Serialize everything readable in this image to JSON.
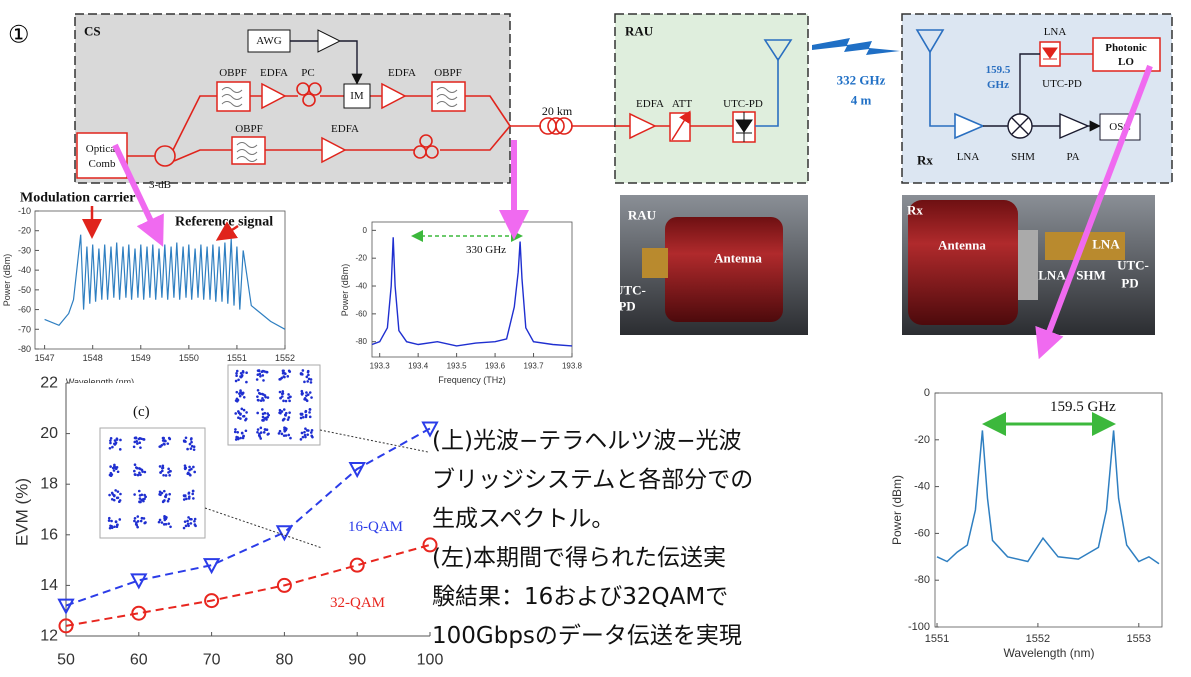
{
  "marker": "①",
  "diagram": {
    "cs": {
      "title": "CS",
      "awg": "AWG",
      "obpf1": "OBPF",
      "edfa1": "EDFA",
      "pc": "PC",
      "im": "IM",
      "edfa2": "EDFA",
      "obpf2": "OBPF",
      "comb": [
        "Optical",
        "Comb"
      ],
      "coupler": "3-dB",
      "obpf3": "OBPF",
      "edfa3": "EDFA"
    },
    "fiber": "20 km",
    "rau": {
      "title": "RAU",
      "edfa": "EDFA",
      "att": "ATT",
      "pd": "UTC-PD"
    },
    "link": [
      "332 GHz",
      "4 m"
    ],
    "rx": {
      "title": "Rx",
      "lna1": "LNA",
      "lo_freq": [
        "159.5",
        "GHz"
      ],
      "pd": "UTC-PD",
      "lo": [
        "Photonic",
        "LO"
      ],
      "lna2": "LNA",
      "shm": "SHM",
      "pa": "PA",
      "osc": "OSC"
    }
  },
  "photos": {
    "rau": {
      "title": "RAU",
      "antenna": "Antenna",
      "pd": [
        "UTC-",
        "PD"
      ]
    },
    "rx": {
      "title": "Rx",
      "antenna": "Antenna",
      "lna1": "LNA",
      "lna2": "LNA",
      "shm": "SHM",
      "pd": [
        "UTC-",
        "PD"
      ]
    }
  },
  "caption": [
    "(上)光波−テラヘルツ波−光波",
    "ブリッジシステムと各部分での",
    "生成スペクトル。",
    "(左)本期間で得られた伝送実",
    "験結果：16および32QAMで",
    "100Gbpsのデータ伝送を実現"
  ],
  "chart_data": [
    {
      "type": "line",
      "ylabel": "Power (dBm)",
      "xlabel": "Wavelength (nm)",
      "annotations": [
        "Modulation carrier",
        "Reference signal"
      ],
      "xlim": [
        1546.8,
        1552
      ],
      "xticks": [
        1547,
        1548,
        1549,
        1550,
        1551,
        1552
      ],
      "ylim": [
        -80,
        -10
      ],
      "yticks": [
        -10,
        -20,
        -30,
        -40,
        -50,
        -60,
        -70,
        -80
      ],
      "series": [
        {
          "color": "#2f7fc1",
          "x": [
            1547.0,
            1547.3,
            1547.5,
            1547.6,
            1547.75,
            1547.81,
            1547.88,
            1547.94,
            1548.0,
            1548.06,
            1548.13,
            1548.19,
            1548.25,
            1548.31,
            1548.38,
            1548.44,
            1548.5,
            1548.56,
            1548.63,
            1548.69,
            1548.75,
            1548.81,
            1548.88,
            1548.94,
            1549.0,
            1549.06,
            1549.13,
            1549.19,
            1549.25,
            1549.31,
            1549.38,
            1549.44,
            1549.5,
            1549.56,
            1549.63,
            1549.69,
            1549.75,
            1549.81,
            1549.88,
            1549.94,
            1550.0,
            1550.06,
            1550.13,
            1550.19,
            1550.25,
            1550.31,
            1550.38,
            1550.44,
            1550.5,
            1550.56,
            1550.63,
            1550.69,
            1550.75,
            1550.81,
            1550.88,
            1550.94,
            1551.0,
            1551.06,
            1551.13,
            1551.3,
            1551.5,
            1551.7,
            1552.0
          ],
          "values": [
            -65,
            -68,
            -62,
            -55,
            -22,
            -60,
            -28,
            -57,
            -27,
            -56,
            -29,
            -55,
            -27,
            -55,
            -28,
            -54,
            -26,
            -55,
            -28,
            -54,
            -27,
            -55,
            -29,
            -54,
            -27,
            -55,
            -28,
            -54,
            -27,
            -55,
            -29,
            -54,
            -27,
            -55,
            -28,
            -54,
            -26,
            -55,
            -28,
            -54,
            -27,
            -55,
            -29,
            -54,
            -27,
            -55,
            -28,
            -55,
            -27,
            -56,
            -28,
            -56,
            -26,
            -57,
            -24,
            -58,
            -28,
            -60,
            -30,
            -58,
            -62,
            -66,
            -70
          ]
        }
      ]
    },
    {
      "type": "line",
      "ylabel": "Power (dBm)",
      "xlabel": "Frequency (THz)",
      "annotations": [
        "330 GHz"
      ],
      "xlim": [
        193.28,
        193.8
      ],
      "xticks": [
        193.3,
        193.4,
        193.5,
        193.6,
        193.7,
        193.8
      ],
      "ylim": [
        -91,
        6
      ],
      "yticks": [
        0,
        -20,
        -40,
        -60,
        -80
      ],
      "series": [
        {
          "color": "#1f2fd0",
          "x": [
            193.28,
            193.3,
            193.32,
            193.33,
            193.335,
            193.34,
            193.35,
            193.37,
            193.4,
            193.45,
            193.5,
            193.55,
            193.6,
            193.63,
            193.65,
            193.66,
            193.665,
            193.67,
            193.68,
            193.7,
            193.75,
            193.8
          ],
          "values": [
            -82,
            -80,
            -70,
            -40,
            -5,
            -40,
            -72,
            -80,
            -82,
            -80,
            -83,
            -81,
            -80,
            -78,
            -55,
            -30,
            -8,
            -35,
            -70,
            -80,
            -82,
            -83
          ]
        }
      ]
    },
    {
      "type": "line",
      "ylabel": "EVM (%)",
      "annotations": [
        "(c)"
      ],
      "xlim": [
        50,
        100
      ],
      "xticks": [
        50,
        60,
        70,
        80,
        90,
        100
      ],
      "ylim": [
        12,
        22
      ],
      "yticks": [
        12,
        14,
        16,
        18,
        20,
        22
      ],
      "series": [
        {
          "name": "16-QAM",
          "color": "#2b3ce8",
          "marker": "triangle",
          "dashed": true,
          "x": [
            50,
            60,
            70,
            80,
            90,
            100
          ],
          "values": [
            13.2,
            14.2,
            14.8,
            16.1,
            18.6,
            20.2
          ]
        },
        {
          "name": "32-QAM",
          "color": "#e8261f",
          "marker": "circle",
          "dashed": true,
          "x": [
            50,
            60,
            70,
            80,
            90,
            100
          ],
          "values": [
            12.4,
            12.9,
            13.4,
            14.0,
            14.8,
            15.6
          ]
        }
      ]
    },
    {
      "type": "line",
      "ylabel": "Power (dBm)",
      "xlabel": "Wavelength (nm)",
      "annotations": [
        "159.5 GHz"
      ],
      "xlim": [
        1550.98,
        1553.23
      ],
      "xticks": [
        1551,
        1552,
        1553
      ],
      "ylim": [
        -100,
        0
      ],
      "yticks": [
        0,
        -20,
        -40,
        -60,
        -80,
        -100
      ],
      "series": [
        {
          "color": "#2f7fc1",
          "x": [
            1551.0,
            1551.1,
            1551.2,
            1551.3,
            1551.38,
            1551.45,
            1551.5,
            1551.55,
            1551.7,
            1551.9,
            1552.05,
            1552.2,
            1552.4,
            1552.6,
            1552.68,
            1552.75,
            1552.8,
            1552.88,
            1553.0,
            1553.1,
            1553.2
          ],
          "values": [
            -70,
            -72,
            -68,
            -65,
            -50,
            -16,
            -45,
            -63,
            -70,
            -72,
            -62,
            -70,
            -71,
            -66,
            -50,
            -16,
            -45,
            -65,
            -72,
            -70,
            -73
          ]
        }
      ]
    }
  ]
}
